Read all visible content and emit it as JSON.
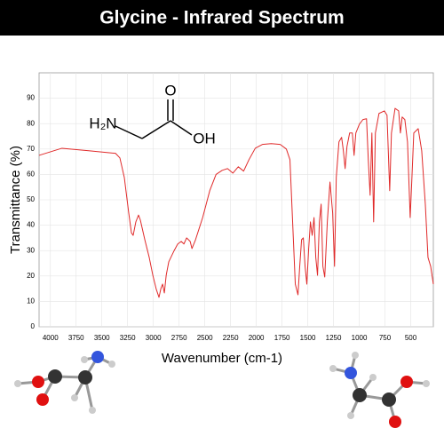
{
  "chart_data": {
    "type": "line",
    "title": "Glycine - Infrared Spectrum",
    "x_label": "Wavenumber (cm-1)",
    "y_label": "Transmittance (%)",
    "annotations": [
      "H₂N",
      "O",
      "OH"
    ],
    "color": "#e02a2a",
    "grid": true,
    "xlim": [
      4110,
      280
    ],
    "ylim": [
      0,
      100
    ],
    "xticks": [
      4000,
      3750,
      3500,
      3250,
      3000,
      2750,
      2500,
      2250,
      2000,
      1750,
      1500,
      1250,
      1000,
      750,
      500
    ],
    "yticks": [
      0,
      10,
      20,
      30,
      40,
      50,
      60,
      70,
      80,
      90
    ],
    "x": [
      4110,
      3888,
      3628,
      3368,
      3325,
      3282,
      3239,
      3213,
      3196,
      3170,
      3144,
      3126,
      3083,
      3040,
      3005,
      2971,
      2945,
      2927,
      2910,
      2893,
      2875,
      2850,
      2798,
      2763,
      2729,
      2703,
      2677,
      2642,
      2625,
      2590,
      2521,
      2452,
      2391,
      2331,
      2279,
      2227,
      2175,
      2123,
      2071,
      2010,
      1941,
      1855,
      1768,
      1708,
      1673,
      1647,
      1621,
      1595,
      1578,
      1560,
      1543,
      1526,
      1509,
      1491,
      1474,
      1457,
      1439,
      1422,
      1405,
      1387,
      1370,
      1353,
      1335,
      1310,
      1284,
      1258,
      1240,
      1223,
      1197,
      1171,
      1154,
      1137,
      1119,
      1093,
      1067,
      1050,
      1033,
      998,
      964,
      929,
      912,
      894,
      877,
      860,
      843,
      808,
      756,
      730,
      704,
      687,
      652,
      617,
      600,
      583,
      557,
      531,
      505,
      488,
      470,
      427,
      393,
      358,
      332,
      306,
      280
    ],
    "values": [
      67.5,
      70.3,
      69.3,
      68.3,
      66.5,
      58.8,
      44.8,
      37,
      36,
      41.3,
      44,
      42,
      34.3,
      27.3,
      20.3,
      14.7,
      11.6,
      15,
      16.8,
      13.3,
      20.3,
      25.6,
      30,
      32.6,
      33.6,
      32.6,
      35,
      33.6,
      30.8,
      34.3,
      43,
      53.6,
      60,
      61.6,
      62.3,
      60.5,
      63,
      61.3,
      65.8,
      70.3,
      71.8,
      72.1,
      71.8,
      70,
      65.8,
      41.3,
      16.8,
      12.6,
      23.8,
      34.3,
      35,
      23.8,
      16.8,
      30.8,
      41.3,
      36,
      43,
      27.3,
      20.3,
      41.3,
      48.3,
      23.8,
      19.6,
      41.3,
      57,
      44.8,
      23.8,
      58.8,
      72.8,
      74.6,
      69.3,
      62.3,
      71,
      76.3,
      76.3,
      67.5,
      76.3,
      79.8,
      81.6,
      81.9,
      65.8,
      51.8,
      76.3,
      41.3,
      76.3,
      84,
      85,
      83.3,
      53.6,
      76.3,
      86,
      85,
      76.3,
      82.6,
      81.6,
      72.8,
      43,
      58.8,
      76.3,
      78,
      69.3,
      48.3,
      27.3,
      23.8,
      16.8
    ]
  }
}
